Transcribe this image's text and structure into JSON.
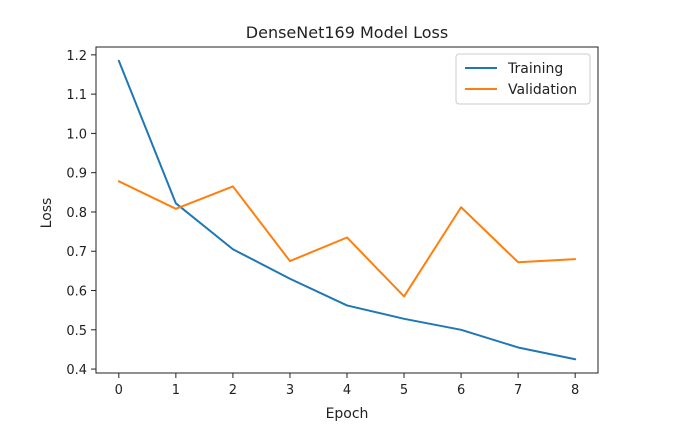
{
  "chart_data": {
    "type": "line",
    "title": "DenseNet169 Model Loss",
    "xlabel": "Epoch",
    "ylabel": "Loss",
    "x": [
      0,
      1,
      2,
      3,
      4,
      5,
      6,
      7,
      8
    ],
    "xlim": [
      -0.4,
      8.4
    ],
    "ylim": [
      0.39,
      1.22
    ],
    "xticks": [
      0,
      1,
      2,
      3,
      4,
      5,
      6,
      7,
      8
    ],
    "yticks": [
      0.4,
      0.5,
      0.6,
      0.7,
      0.8,
      0.9,
      1.0,
      1.1,
      1.2
    ],
    "ytick_labels": [
      "0.4",
      "0.5",
      "0.6",
      "0.7",
      "0.8",
      "0.9",
      "1.0",
      "1.1",
      "1.2"
    ],
    "grid": false,
    "legend_position": "top-right",
    "series": [
      {
        "name": "Training",
        "color": "#1f77b4",
        "values": [
          1.185,
          0.822,
          0.705,
          0.63,
          0.562,
          0.528,
          0.5,
          0.455,
          0.425
        ]
      },
      {
        "name": "Validation",
        "color": "#ff7f0e",
        "values": [
          0.878,
          0.808,
          0.865,
          0.675,
          0.735,
          0.585,
          0.812,
          0.672,
          0.68
        ]
      }
    ]
  }
}
